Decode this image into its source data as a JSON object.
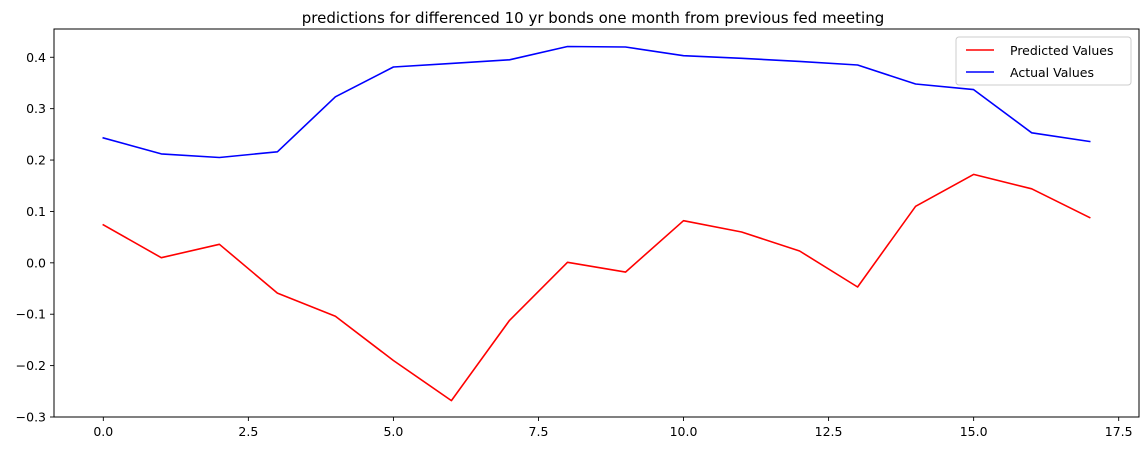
{
  "chart_data": {
    "type": "line",
    "title": "predictions for differenced 10 yr bonds one month from previous fed meeting",
    "xlabel": "",
    "ylabel": "",
    "x": [
      0,
      1,
      2,
      3,
      4,
      5,
      6,
      7,
      8,
      9,
      10,
      11,
      12,
      13,
      14,
      15,
      16,
      17
    ],
    "xlim": [
      -0.85,
      17.85
    ],
    "ylim": [
      -0.3,
      0.455
    ],
    "x_ticks": [
      0.0,
      2.5,
      5.0,
      7.5,
      10.0,
      12.5,
      15.0,
      17.5
    ],
    "x_tick_labels": [
      "0.0",
      "2.5",
      "5.0",
      "7.5",
      "10.0",
      "12.5",
      "15.0",
      "17.5"
    ],
    "y_ticks": [
      -0.3,
      -0.2,
      -0.1,
      0.0,
      0.1,
      0.2,
      0.3,
      0.4
    ],
    "y_tick_labels": [
      "−0.3",
      "−0.2",
      "−0.1",
      "0.0",
      "0.1",
      "0.2",
      "0.3",
      "0.4"
    ],
    "grid": false,
    "legend_position": "top-right",
    "series": [
      {
        "name": "Predicted Values",
        "color": "#ff0000",
        "values": [
          0.074,
          0.01,
          0.036,
          -0.059,
          -0.104,
          -0.19,
          -0.268,
          -0.112,
          0.001,
          -0.018,
          0.082,
          0.06,
          0.023,
          -0.047,
          0.11,
          0.172,
          0.144,
          0.088
        ]
      },
      {
        "name": "Actual Values",
        "color": "#0000ff",
        "values": [
          0.243,
          0.212,
          0.205,
          0.216,
          0.323,
          0.381,
          0.388,
          0.395,
          0.421,
          0.42,
          0.403,
          0.398,
          0.392,
          0.385,
          0.348,
          0.337,
          0.253,
          0.236
        ]
      }
    ]
  }
}
